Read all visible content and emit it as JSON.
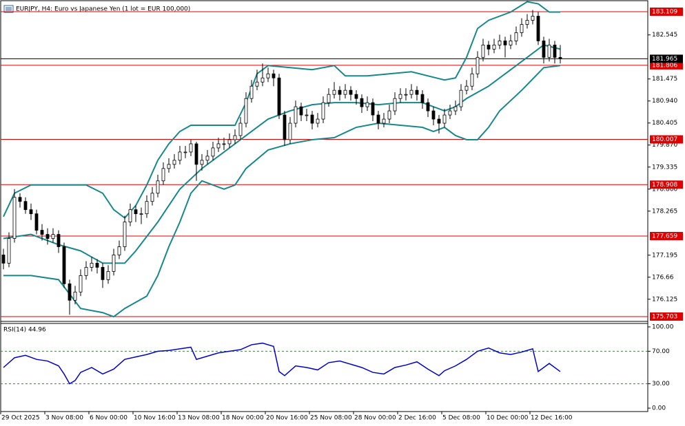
{
  "chart_data": {
    "type": "candlestick",
    "title": "EURJPY, H4:  Euro vs Japanese Yen (1 lot = EUR 100,000)",
    "up_color": "#ffffff",
    "down_color": "#000000",
    "ylim": [
      175.603,
      183.393
    ],
    "yticks": [
      {
        "value": 176.125,
        "label": "176.125"
      },
      176.66,
      177.195,
      178.265,
      {
        "value": 178.8,
        "label": "178.800"
      },
      179.335,
      {
        "value": 179.87,
        "label": "179.870"
      },
      180.405,
      {
        "value": 180.94,
        "label": "180.940"
      },
      181.475,
      182.545
    ],
    "levels": {
      "values": [
        183.109,
        181.806,
        180.007,
        178.908,
        177.659,
        175.703
      ],
      "color": "#e00000"
    },
    "last_price": 181.965,
    "ohlc": [
      [
        177.2,
        177.35,
        176.85,
        177.0
      ],
      [
        177.0,
        177.75,
        176.9,
        177.6
      ],
      [
        177.6,
        178.8,
        177.5,
        178.6
      ],
      [
        178.6,
        178.7,
        178.35,
        178.5
      ],
      [
        178.5,
        178.6,
        178.2,
        178.3
      ],
      [
        178.3,
        178.45,
        178.05,
        178.2
      ],
      [
        178.2,
        178.3,
        177.7,
        177.8
      ],
      [
        177.8,
        177.95,
        177.55,
        177.7
      ],
      [
        177.7,
        177.85,
        177.45,
        177.6
      ],
      [
        177.6,
        177.85,
        177.5,
        177.7
      ],
      [
        177.7,
        177.8,
        177.25,
        177.4
      ],
      [
        177.4,
        177.5,
        176.4,
        176.5
      ],
      [
        176.5,
        176.6,
        175.75,
        176.1
      ],
      [
        176.1,
        176.45,
        176.0,
        176.3
      ],
      [
        176.3,
        176.85,
        176.2,
        176.7
      ],
      [
        176.7,
        177.05,
        176.6,
        176.9
      ],
      [
        176.9,
        177.15,
        176.8,
        177.0
      ],
      [
        177.0,
        177.1,
        176.75,
        176.9
      ],
      [
        176.9,
        177.0,
        176.4,
        176.6
      ],
      [
        176.6,
        176.95,
        176.5,
        176.8
      ],
      [
        176.8,
        177.35,
        176.7,
        177.2
      ],
      [
        177.2,
        177.55,
        177.1,
        177.4
      ],
      [
        177.4,
        178.15,
        177.3,
        178.0
      ],
      [
        178.0,
        178.45,
        177.9,
        178.3
      ],
      [
        178.3,
        178.4,
        178.0,
        178.2
      ],
      [
        178.2,
        178.35,
        177.95,
        178.2
      ],
      [
        178.2,
        178.65,
        178.1,
        178.5
      ],
      [
        178.5,
        178.85,
        178.4,
        178.7
      ],
      [
        178.7,
        179.15,
        178.6,
        179.0
      ],
      [
        179.0,
        179.45,
        178.9,
        179.3
      ],
      [
        179.3,
        179.55,
        179.2,
        179.4
      ],
      [
        179.4,
        179.65,
        179.3,
        179.5
      ],
      [
        179.5,
        179.85,
        179.4,
        179.7
      ],
      [
        179.7,
        179.85,
        179.55,
        179.7
      ],
      [
        179.7,
        180.0,
        179.6,
        179.9
      ],
      [
        179.9,
        179.95,
        179.0,
        179.4
      ],
      [
        179.4,
        179.65,
        179.25,
        179.5
      ],
      [
        179.5,
        179.75,
        179.4,
        179.6
      ],
      [
        179.6,
        179.95,
        179.5,
        179.8
      ],
      [
        179.8,
        180.05,
        179.7,
        179.9
      ],
      [
        179.9,
        180.05,
        179.75,
        179.9
      ],
      [
        179.9,
        180.15,
        179.8,
        180.0
      ],
      [
        180.0,
        180.25,
        179.9,
        180.1
      ],
      [
        180.1,
        180.55,
        180.0,
        180.4
      ],
      [
        180.4,
        181.15,
        180.3,
        181.0
      ],
      [
        181.0,
        181.45,
        180.9,
        181.3
      ],
      [
        181.3,
        181.7,
        181.2,
        181.4
      ],
      [
        181.4,
        181.85,
        181.3,
        181.5
      ],
      [
        181.5,
        181.75,
        181.4,
        181.6
      ],
      [
        181.6,
        181.7,
        181.3,
        181.5
      ],
      [
        181.5,
        181.6,
        180.5,
        180.6
      ],
      [
        180.6,
        180.7,
        179.85,
        180.0
      ],
      [
        180.0,
        180.55,
        179.9,
        180.4
      ],
      [
        180.4,
        180.95,
        180.3,
        180.8
      ],
      [
        180.8,
        180.9,
        180.45,
        180.6
      ],
      [
        180.6,
        180.75,
        180.45,
        180.6
      ],
      [
        180.6,
        180.7,
        180.25,
        180.4
      ],
      [
        180.4,
        180.65,
        180.3,
        180.5
      ],
      [
        180.5,
        181.05,
        180.4,
        180.9
      ],
      [
        180.9,
        181.25,
        180.8,
        181.1
      ],
      [
        181.1,
        181.4,
        181.0,
        181.2
      ],
      [
        181.2,
        181.3,
        180.95,
        181.1
      ],
      [
        181.1,
        181.35,
        181.0,
        181.2
      ],
      [
        181.2,
        181.3,
        180.95,
        181.1
      ],
      [
        181.1,
        181.2,
        180.85,
        181.0
      ],
      [
        181.0,
        181.1,
        180.65,
        180.8
      ],
      [
        180.8,
        181.05,
        180.7,
        180.9
      ],
      [
        180.9,
        181.0,
        180.45,
        180.6
      ],
      [
        180.6,
        180.7,
        180.25,
        180.4
      ],
      [
        180.4,
        180.65,
        180.3,
        180.5
      ],
      [
        180.5,
        180.85,
        180.4,
        180.7
      ],
      [
        180.7,
        181.15,
        180.6,
        181.0
      ],
      [
        181.0,
        181.25,
        180.9,
        181.1
      ],
      [
        181.1,
        181.25,
        180.95,
        181.1
      ],
      [
        181.1,
        181.35,
        181.0,
        181.2
      ],
      [
        181.2,
        181.3,
        180.95,
        181.1
      ],
      [
        181.1,
        181.2,
        180.75,
        180.9
      ],
      [
        180.9,
        181.0,
        180.55,
        180.7
      ],
      [
        180.7,
        180.8,
        180.35,
        180.5
      ],
      [
        180.5,
        180.6,
        180.15,
        180.4
      ],
      [
        180.4,
        180.75,
        180.3,
        180.6
      ],
      [
        180.6,
        180.85,
        180.5,
        180.7
      ],
      [
        180.7,
        180.95,
        180.6,
        180.8
      ],
      [
        180.8,
        181.35,
        180.7,
        181.2
      ],
      [
        181.2,
        181.45,
        181.1,
        181.3
      ],
      [
        181.3,
        181.75,
        181.2,
        181.6
      ],
      [
        181.6,
        182.15,
        181.5,
        182.0
      ],
      [
        182.0,
        182.45,
        181.9,
        182.3
      ],
      [
        182.3,
        182.4,
        182.05,
        182.2
      ],
      [
        182.2,
        182.45,
        182.1,
        182.3
      ],
      [
        182.3,
        182.55,
        182.2,
        182.4
      ],
      [
        182.4,
        182.5,
        182.0,
        182.3
      ],
      [
        182.3,
        182.55,
        182.2,
        182.4
      ],
      [
        182.4,
        182.75,
        182.3,
        182.6
      ],
      [
        182.6,
        182.95,
        182.5,
        182.8
      ],
      [
        182.8,
        183.05,
        182.7,
        182.9
      ],
      [
        182.9,
        183.15,
        182.8,
        183.0
      ],
      [
        183.0,
        183.1,
        182.3,
        182.4
      ],
      [
        182.4,
        182.5,
        181.85,
        182.0
      ],
      [
        182.0,
        182.45,
        181.9,
        182.3
      ],
      [
        182.3,
        182.4,
        181.85,
        182.0
      ],
      [
        182.0,
        182.3,
        181.85,
        181.965
      ]
    ],
    "bands": [
      {
        "color": "#16878a",
        "x": [
          0,
          2,
          5,
          10,
          15,
          18,
          20,
          22,
          24,
          26,
          28,
          30,
          32,
          34,
          38,
          42,
          44,
          46,
          48,
          52,
          56,
          60,
          62,
          66,
          70,
          74,
          80,
          82,
          84,
          86,
          88,
          92,
          95,
          97,
          99,
          101
        ],
        "values": [
          178.13,
          178.7,
          178.9,
          178.9,
          178.9,
          178.7,
          178.3,
          178.1,
          178.4,
          178.9,
          179.5,
          179.9,
          180.2,
          180.35,
          180.35,
          180.35,
          180.9,
          181.6,
          181.8,
          181.75,
          181.7,
          181.8,
          181.55,
          181.55,
          181.6,
          181.65,
          181.45,
          181.5,
          182.0,
          182.7,
          182.9,
          183.1,
          183.35,
          183.3,
          183.1,
          183.1
        ]
      },
      {
        "color": "#16878a",
        "x": [
          0,
          5,
          10,
          14,
          18,
          22,
          24,
          28,
          32,
          36,
          40,
          44,
          48,
          52,
          56,
          60,
          64,
          68,
          72,
          76,
          80,
          82,
          84,
          88,
          92,
          96,
          98,
          101
        ],
        "values": [
          177.6,
          177.7,
          177.45,
          177.3,
          177.0,
          177.0,
          177.3,
          178.0,
          178.8,
          179.3,
          179.7,
          180.1,
          180.5,
          180.7,
          180.85,
          180.9,
          180.9,
          180.85,
          180.9,
          180.9,
          180.7,
          180.8,
          181.0,
          181.3,
          181.7,
          182.1,
          182.3,
          182.2
        ]
      },
      {
        "color": "#16878a",
        "x": [
          0,
          5,
          10,
          14,
          18,
          20,
          22,
          26,
          28,
          30,
          32,
          34,
          36,
          38,
          40,
          42,
          44,
          48,
          52,
          56,
          60,
          64,
          68,
          72,
          76,
          78,
          80,
          82,
          84,
          86,
          88,
          90,
          94,
          98,
          101
        ],
        "values": [
          176.7,
          176.7,
          176.6,
          175.9,
          175.8,
          175.7,
          175.9,
          176.2,
          176.7,
          177.4,
          178.0,
          178.7,
          179.0,
          178.9,
          178.8,
          178.9,
          179.3,
          179.75,
          179.9,
          180.0,
          180.05,
          180.3,
          180.4,
          180.35,
          180.3,
          180.2,
          180.3,
          180.1,
          180.0,
          180.0,
          180.3,
          180.7,
          181.2,
          181.75,
          181.8
        ]
      }
    ],
    "x_labels": [
      "29 Oct 2025",
      "3 Nov 08:00",
      "6 Nov 00:00",
      "10 Nov 16:00",
      "13 Nov 08:00",
      "18 Nov 00:00",
      "20 Nov 16:00",
      "25 Nov 08:00",
      "28 Nov 00:00",
      "2 Dec 16:00",
      "5 Dec 08:00",
      "10 Dec 00:00",
      "12 Dec 16:00"
    ],
    "rsi": {
      "type": "line",
      "title": "RSI(14) 44.96",
      "color": "#0000cd",
      "level_color": "#2e8b2e",
      "ylim": [
        -4.2,
        104.2
      ],
      "yticks": [
        {
          "value": 100,
          "label": "100.00"
        },
        {
          "value": 70,
          "label": "70.00"
        },
        {
          "value": 30,
          "label": "30.00"
        },
        {
          "value": 0,
          "label": "0.00"
        }
      ],
      "x": [
        0,
        2,
        4,
        6,
        8,
        10,
        11,
        12,
        13,
        14,
        16,
        18,
        20,
        22,
        24,
        26,
        28,
        30,
        32,
        34,
        35,
        37,
        39,
        41,
        43,
        45,
        47,
        49,
        50,
        51,
        53,
        55,
        57,
        59,
        61,
        63,
        65,
        67,
        69,
        71,
        73,
        75,
        77,
        79,
        80,
        82,
        84,
        86,
        88,
        90,
        92,
        94,
        96,
        97,
        99,
        101
      ],
      "values": [
        50,
        62,
        65,
        60,
        58,
        52,
        42,
        30,
        34,
        44,
        50,
        42,
        48,
        60,
        63,
        66,
        70,
        71,
        73,
        75,
        60,
        64,
        68,
        70,
        72,
        78,
        80,
        76,
        45,
        40,
        52,
        50,
        47,
        56,
        58,
        54,
        50,
        44,
        42,
        50,
        53,
        57,
        48,
        40,
        46,
        52,
        60,
        70,
        74,
        68,
        66,
        69,
        73,
        45,
        55,
        44.96
      ]
    }
  }
}
